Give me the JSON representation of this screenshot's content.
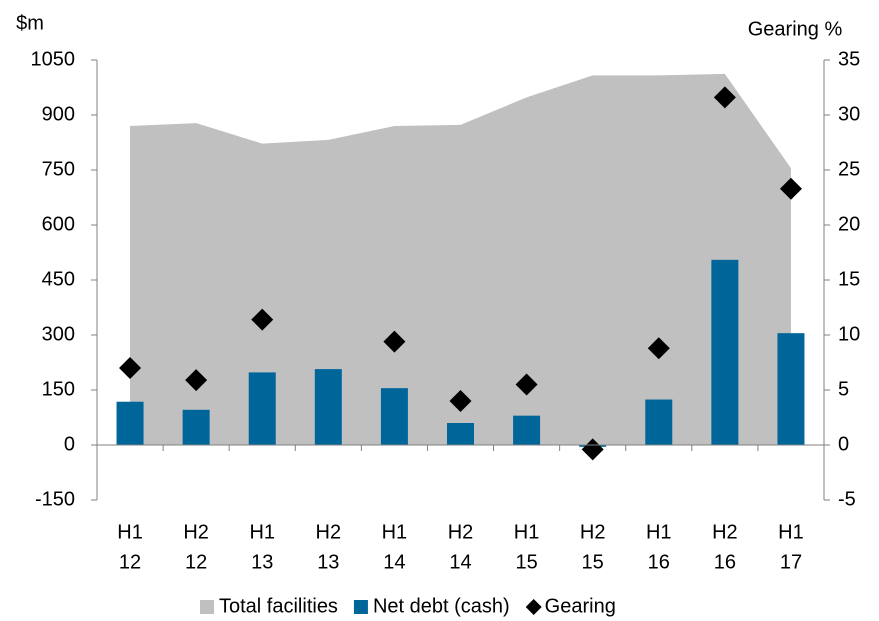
{
  "chart_data": {
    "type": "combo",
    "y_label": "$m",
    "y2_label": "Gearing %",
    "categories": [
      [
        "H1",
        "12"
      ],
      [
        "H2",
        "12"
      ],
      [
        "H1",
        "13"
      ],
      [
        "H2",
        "13"
      ],
      [
        "H1",
        "14"
      ],
      [
        "H2",
        "14"
      ],
      [
        "H1",
        "15"
      ],
      [
        "H2",
        "15"
      ],
      [
        "H1",
        "16"
      ],
      [
        "H2",
        "16"
      ],
      [
        "H1",
        "17"
      ]
    ],
    "series": [
      {
        "name": "Total facilities",
        "type": "area",
        "color": "#c0c0c0",
        "values": [
          870,
          878,
          822,
          832,
          870,
          873,
          948,
          1008,
          1008,
          1012,
          755
        ]
      },
      {
        "name": "Net debt (cash)",
        "type": "bar",
        "color": "#00669a",
        "values": [
          118,
          96,
          198,
          207,
          155,
          60,
          80,
          -5,
          124,
          505,
          305
        ]
      },
      {
        "name": "Gearing",
        "type": "scatter",
        "axis": "y2",
        "color": "#000000",
        "values": [
          7.0,
          5.9,
          11.4,
          null,
          9.4,
          4.0,
          5.5,
          -0.4,
          8.8,
          31.6,
          23.3
        ]
      }
    ],
    "ylim": [
      -150,
      1050
    ],
    "yticks": [
      -150,
      0,
      150,
      300,
      450,
      600,
      750,
      900,
      1050
    ],
    "y2lim": [
      -5,
      35
    ],
    "y2ticks": [
      -5,
      0,
      5,
      10,
      15,
      20,
      25,
      30,
      35
    ],
    "legend": "bottom"
  }
}
